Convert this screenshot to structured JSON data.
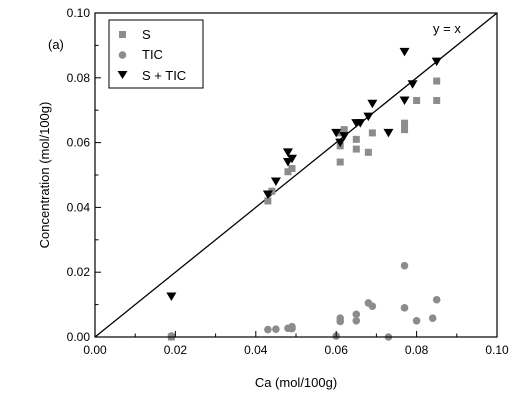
{
  "chart_data": {
    "type": "scatter",
    "panel_label": "(a)",
    "xlabel": "Ca (mol/100g)",
    "ylabel": "Concentration (mol/100g)",
    "xlim": [
      0,
      0.1
    ],
    "ylim": [
      0,
      0.1
    ],
    "xticks": [
      "0.00",
      "0.02",
      "0.04",
      "0.06",
      "0.08",
      "0.10"
    ],
    "yticks": [
      "0.00",
      "0.02",
      "0.04",
      "0.06",
      "0.08",
      "0.10"
    ],
    "grid": false,
    "legend_position": "top-left",
    "reference_line": {
      "label": "y = x",
      "slope": 1,
      "intercept": 0,
      "color": "#000000"
    },
    "series": [
      {
        "name": "S",
        "marker": "square",
        "color": "#8c8c8c",
        "points": [
          [
            0.019,
            0.0
          ],
          [
            0.043,
            0.042
          ],
          [
            0.044,
            0.045
          ],
          [
            0.048,
            0.051
          ],
          [
            0.049,
            0.052
          ],
          [
            0.061,
            0.054
          ],
          [
            0.061,
            0.059
          ],
          [
            0.061,
            0.063
          ],
          [
            0.062,
            0.064
          ],
          [
            0.065,
            0.061
          ],
          [
            0.065,
            0.058
          ],
          [
            0.068,
            0.057
          ],
          [
            0.069,
            0.063
          ],
          [
            0.077,
            0.064
          ],
          [
            0.077,
            0.066
          ],
          [
            0.08,
            0.073
          ],
          [
            0.085,
            0.079
          ],
          [
            0.085,
            0.073
          ]
        ]
      },
      {
        "name": "TIC",
        "marker": "circle",
        "color": "#8c8c8c",
        "points": [
          [
            0.019,
            0.0003
          ],
          [
            0.043,
            0.0023
          ],
          [
            0.045,
            0.0024
          ],
          [
            0.048,
            0.0027
          ],
          [
            0.049,
            0.0032
          ],
          [
            0.049,
            0.0026
          ],
          [
            0.06,
            0.0003
          ],
          [
            0.061,
            0.0048
          ],
          [
            0.061,
            0.0058
          ],
          [
            0.065,
            0.005
          ],
          [
            0.065,
            0.007
          ],
          [
            0.068,
            0.0105
          ],
          [
            0.069,
            0.0095
          ],
          [
            0.073,
            0.0
          ],
          [
            0.077,
            0.022
          ],
          [
            0.077,
            0.009
          ],
          [
            0.08,
            0.005
          ],
          [
            0.084,
            0.0058
          ],
          [
            0.085,
            0.0115
          ]
        ]
      },
      {
        "name": "S + TIC",
        "marker": "triangle-down",
        "color": "#000000",
        "points": [
          [
            0.019,
            0.0125
          ],
          [
            0.043,
            0.044
          ],
          [
            0.045,
            0.048
          ],
          [
            0.048,
            0.054
          ],
          [
            0.048,
            0.057
          ],
          [
            0.049,
            0.055
          ],
          [
            0.06,
            0.063
          ],
          [
            0.061,
            0.06
          ],
          [
            0.062,
            0.062
          ],
          [
            0.065,
            0.066
          ],
          [
            0.066,
            0.066
          ],
          [
            0.068,
            0.068
          ],
          [
            0.069,
            0.072
          ],
          [
            0.073,
            0.063
          ],
          [
            0.077,
            0.073
          ],
          [
            0.077,
            0.088
          ],
          [
            0.079,
            0.078
          ],
          [
            0.085,
            0.085
          ]
        ]
      }
    ]
  }
}
